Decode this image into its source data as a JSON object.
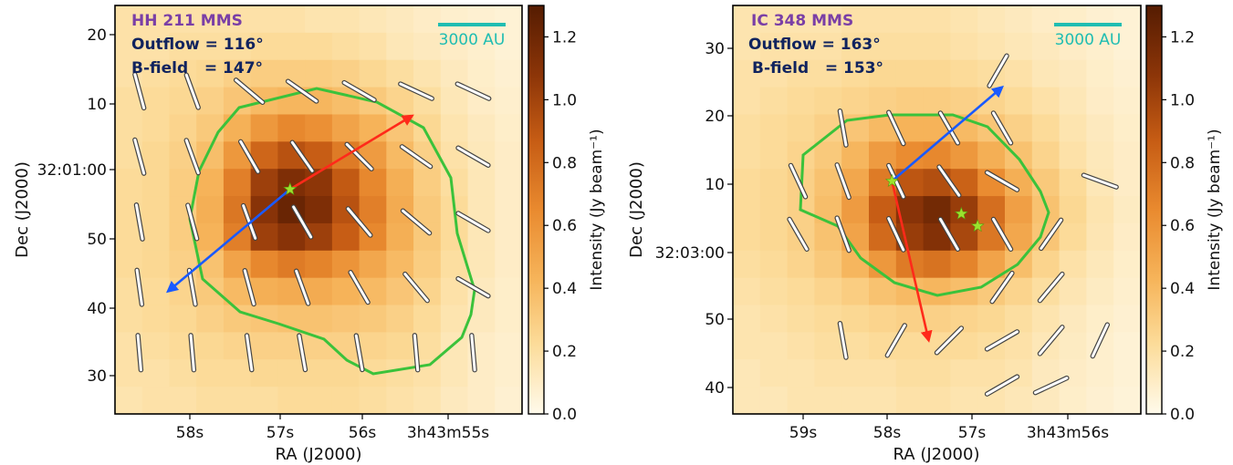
{
  "chart_data": [
    {
      "type": "heatmap",
      "title": "HH 211 MMS",
      "outflow_label": "Outflow = 116°",
      "bfield_label": "B-field   = 147°",
      "scalebar_label": "3000 AU",
      "xlabel": "RA (J2000)",
      "ylabel": "Dec (J2000)",
      "x_ticks": [
        "58s",
        "57s",
        "56s",
        "3h43m55s"
      ],
      "y_ticks": [
        "20",
        "10",
        "32:01:00",
        "50",
        "40",
        "30"
      ],
      "colorbar_label": "Intensity (Jy beam⁻¹)",
      "colorbar_ticks": [
        "1.2",
        "1.0",
        "0.8",
        "0.6",
        "0.4",
        "0.2",
        "0.0"
      ],
      "colorbar_range": [
        0,
        1.3
      ],
      "colormap": [
        "#fffaeb",
        "#fcdc9a",
        "#f6b45a",
        "#e98a2f",
        "#c65c14",
        "#8c3508",
        "#551c02"
      ],
      "grid": {
        "cols": 15,
        "rows": 15,
        "values": [
          [
            0.18,
            0.18,
            0.18,
            0.18,
            0.18,
            0.18,
            0.18,
            0.16,
            0.16,
            0.14,
            0.12,
            0.1,
            0.08,
            0.07,
            0.06
          ],
          [
            0.18,
            0.18,
            0.2,
            0.2,
            0.2,
            0.22,
            0.22,
            0.22,
            0.2,
            0.18,
            0.14,
            0.12,
            0.1,
            0.08,
            0.06
          ],
          [
            0.18,
            0.2,
            0.22,
            0.24,
            0.28,
            0.3,
            0.3,
            0.3,
            0.28,
            0.24,
            0.2,
            0.16,
            0.12,
            0.09,
            0.07
          ],
          [
            0.2,
            0.22,
            0.24,
            0.28,
            0.34,
            0.4,
            0.42,
            0.42,
            0.38,
            0.32,
            0.26,
            0.2,
            0.14,
            0.1,
            0.08
          ],
          [
            0.2,
            0.22,
            0.26,
            0.32,
            0.45,
            0.58,
            0.66,
            0.62,
            0.52,
            0.44,
            0.34,
            0.24,
            0.16,
            0.12,
            0.09
          ],
          [
            0.2,
            0.24,
            0.28,
            0.38,
            0.58,
            0.82,
            0.92,
            0.86,
            0.72,
            0.56,
            0.4,
            0.28,
            0.18,
            0.13,
            0.1
          ],
          [
            0.22,
            0.24,
            0.3,
            0.44,
            0.7,
            1.02,
            1.14,
            1.08,
            0.88,
            0.66,
            0.46,
            0.3,
            0.2,
            0.14,
            0.1
          ],
          [
            0.22,
            0.24,
            0.3,
            0.46,
            0.74,
            1.1,
            1.22,
            1.14,
            0.92,
            0.7,
            0.48,
            0.32,
            0.22,
            0.14,
            0.1
          ],
          [
            0.22,
            0.24,
            0.3,
            0.44,
            0.7,
            1.02,
            1.1,
            1.02,
            0.86,
            0.66,
            0.46,
            0.32,
            0.22,
            0.14,
            0.1
          ],
          [
            0.22,
            0.24,
            0.28,
            0.36,
            0.52,
            0.66,
            0.72,
            0.68,
            0.6,
            0.5,
            0.4,
            0.3,
            0.2,
            0.14,
            0.1
          ],
          [
            0.2,
            0.22,
            0.26,
            0.32,
            0.4,
            0.46,
            0.48,
            0.48,
            0.44,
            0.4,
            0.34,
            0.26,
            0.18,
            0.12,
            0.09
          ],
          [
            0.2,
            0.22,
            0.24,
            0.28,
            0.32,
            0.34,
            0.36,
            0.36,
            0.34,
            0.32,
            0.28,
            0.22,
            0.16,
            0.12,
            0.09
          ],
          [
            0.18,
            0.2,
            0.22,
            0.24,
            0.26,
            0.28,
            0.28,
            0.28,
            0.28,
            0.26,
            0.24,
            0.2,
            0.14,
            0.1,
            0.08
          ],
          [
            0.18,
            0.18,
            0.2,
            0.22,
            0.22,
            0.24,
            0.24,
            0.24,
            0.24,
            0.22,
            0.2,
            0.18,
            0.14,
            0.1,
            0.08
          ],
          [
            0.16,
            0.18,
            0.18,
            0.2,
            0.2,
            0.2,
            0.22,
            0.22,
            0.22,
            0.2,
            0.18,
            0.16,
            0.12,
            0.1,
            0.07
          ]
        ]
      },
      "contour_level": 0.3,
      "sources": [
        [
          0.43,
          0.45
        ]
      ],
      "outflow_red_end": [
        0.73,
        0.27
      ],
      "outflow_blue_end": [
        0.13,
        0.7
      ],
      "vectors": [
        {
          "x": 0.06,
          "y": 0.21,
          "angle": 165
        },
        {
          "x": 0.19,
          "y": 0.21,
          "angle": 160
        },
        {
          "x": 0.33,
          "y": 0.21,
          "angle": 130
        },
        {
          "x": 0.46,
          "y": 0.21,
          "angle": 125
        },
        {
          "x": 0.6,
          "y": 0.21,
          "angle": 120
        },
        {
          "x": 0.74,
          "y": 0.21,
          "angle": 115
        },
        {
          "x": 0.88,
          "y": 0.21,
          "angle": 115
        },
        {
          "x": 0.06,
          "y": 0.37,
          "angle": 165
        },
        {
          "x": 0.19,
          "y": 0.37,
          "angle": 160
        },
        {
          "x": 0.33,
          "y": 0.37,
          "angle": 150
        },
        {
          "x": 0.46,
          "y": 0.37,
          "angle": 145
        },
        {
          "x": 0.6,
          "y": 0.37,
          "angle": 135
        },
        {
          "x": 0.74,
          "y": 0.37,
          "angle": 125
        },
        {
          "x": 0.88,
          "y": 0.37,
          "angle": 120
        },
        {
          "x": 0.06,
          "y": 0.53,
          "angle": 170
        },
        {
          "x": 0.19,
          "y": 0.53,
          "angle": 165
        },
        {
          "x": 0.33,
          "y": 0.53,
          "angle": 160
        },
        {
          "x": 0.46,
          "y": 0.53,
          "angle": 150
        },
        {
          "x": 0.6,
          "y": 0.53,
          "angle": 140
        },
        {
          "x": 0.74,
          "y": 0.53,
          "angle": 130
        },
        {
          "x": 0.88,
          "y": 0.53,
          "angle": 120
        },
        {
          "x": 0.06,
          "y": 0.69,
          "angle": 172
        },
        {
          "x": 0.19,
          "y": 0.69,
          "angle": 170
        },
        {
          "x": 0.33,
          "y": 0.69,
          "angle": 165
        },
        {
          "x": 0.46,
          "y": 0.69,
          "angle": 160
        },
        {
          "x": 0.6,
          "y": 0.69,
          "angle": 150
        },
        {
          "x": 0.74,
          "y": 0.69,
          "angle": 140
        },
        {
          "x": 0.88,
          "y": 0.69,
          "angle": 120
        },
        {
          "x": 0.06,
          "y": 0.85,
          "angle": 175
        },
        {
          "x": 0.19,
          "y": 0.85,
          "angle": 175
        },
        {
          "x": 0.33,
          "y": 0.85,
          "angle": 172
        },
        {
          "x": 0.46,
          "y": 0.85,
          "angle": 170
        },
        {
          "x": 0.6,
          "y": 0.85,
          "angle": 170
        },
        {
          "x": 0.74,
          "y": 0.85,
          "angle": 175
        },
        {
          "x": 0.88,
          "y": 0.85,
          "angle": 175
        }
      ]
    },
    {
      "type": "heatmap",
      "title": "IC 348 MMS",
      "outflow_label": "Outflow = 163°",
      "bfield_label": "B-field   = 153°",
      "scalebar_label": "3000 AU",
      "xlabel": "RA (J2000)",
      "ylabel": "Dec (J2000)",
      "x_ticks": [
        "59s",
        "58s",
        "57s",
        "3h43m56s"
      ],
      "y_ticks": [
        "30",
        "20",
        "10",
        "32:03:00",
        "50",
        "40"
      ],
      "colorbar_label": "Intensity (Jy beam⁻¹)",
      "colorbar_ticks": [
        "1.2",
        "1.0",
        "0.8",
        "0.6",
        "0.4",
        "0.2",
        "0.0"
      ],
      "colorbar_range": [
        0,
        1.3
      ],
      "colormap": [
        "#fffaeb",
        "#fcdc9a",
        "#f6b45a",
        "#e98a2f",
        "#c65c14",
        "#8c3508",
        "#551c02"
      ],
      "grid": {
        "cols": 15,
        "rows": 15,
        "values": [
          [
            0.16,
            0.16,
            0.16,
            0.16,
            0.18,
            0.18,
            0.18,
            0.18,
            0.16,
            0.14,
            0.12,
            0.1,
            0.09,
            0.07,
            0.06
          ],
          [
            0.16,
            0.18,
            0.18,
            0.18,
            0.2,
            0.2,
            0.2,
            0.2,
            0.18,
            0.16,
            0.14,
            0.12,
            0.1,
            0.08,
            0.06
          ],
          [
            0.18,
            0.18,
            0.2,
            0.2,
            0.22,
            0.24,
            0.24,
            0.24,
            0.22,
            0.2,
            0.18,
            0.14,
            0.12,
            0.09,
            0.07
          ],
          [
            0.18,
            0.2,
            0.22,
            0.24,
            0.26,
            0.28,
            0.3,
            0.3,
            0.28,
            0.26,
            0.22,
            0.18,
            0.14,
            0.1,
            0.08
          ],
          [
            0.2,
            0.22,
            0.24,
            0.28,
            0.34,
            0.4,
            0.44,
            0.44,
            0.4,
            0.34,
            0.28,
            0.22,
            0.16,
            0.12,
            0.09
          ],
          [
            0.2,
            0.22,
            0.26,
            0.32,
            0.42,
            0.56,
            0.64,
            0.66,
            0.58,
            0.46,
            0.36,
            0.26,
            0.18,
            0.13,
            0.1
          ],
          [
            0.22,
            0.24,
            0.28,
            0.36,
            0.5,
            0.72,
            0.9,
            0.94,
            0.84,
            0.64,
            0.46,
            0.32,
            0.22,
            0.14,
            0.1
          ],
          [
            0.22,
            0.24,
            0.28,
            0.38,
            0.56,
            0.86,
            1.1,
            1.18,
            1.04,
            0.78,
            0.54,
            0.36,
            0.24,
            0.16,
            0.11
          ],
          [
            0.22,
            0.24,
            0.28,
            0.36,
            0.52,
            0.8,
            1.04,
            1.12,
            0.98,
            0.74,
            0.5,
            0.34,
            0.22,
            0.15,
            0.1
          ],
          [
            0.2,
            0.22,
            0.26,
            0.32,
            0.42,
            0.58,
            0.72,
            0.76,
            0.68,
            0.52,
            0.38,
            0.26,
            0.18,
            0.13,
            0.09
          ],
          [
            0.18,
            0.2,
            0.22,
            0.26,
            0.3,
            0.36,
            0.4,
            0.42,
            0.38,
            0.32,
            0.26,
            0.2,
            0.15,
            0.11,
            0.08
          ],
          [
            0.16,
            0.18,
            0.2,
            0.22,
            0.24,
            0.26,
            0.28,
            0.28,
            0.26,
            0.24,
            0.2,
            0.16,
            0.12,
            0.09,
            0.07
          ],
          [
            0.16,
            0.16,
            0.18,
            0.2,
            0.2,
            0.22,
            0.22,
            0.22,
            0.22,
            0.2,
            0.18,
            0.14,
            0.11,
            0.08,
            0.06
          ],
          [
            0.14,
            0.16,
            0.16,
            0.18,
            0.18,
            0.18,
            0.2,
            0.2,
            0.18,
            0.18,
            0.16,
            0.12,
            0.1,
            0.08,
            0.06
          ],
          [
            0.14,
            0.14,
            0.16,
            0.16,
            0.16,
            0.16,
            0.18,
            0.18,
            0.16,
            0.16,
            0.14,
            0.12,
            0.09,
            0.07,
            0.05
          ]
        ]
      },
      "contour_level": 0.3,
      "sources": [
        [
          0.39,
          0.43
        ],
        [
          0.56,
          0.51
        ],
        [
          0.6,
          0.54
        ]
      ],
      "outflow_red_end": [
        0.48,
        0.82
      ],
      "outflow_blue_end": [
        0.66,
        0.2
      ],
      "vectors": [
        {
          "x": 0.65,
          "y": 0.16,
          "angle": 30
        },
        {
          "x": 0.27,
          "y": 0.3,
          "angle": 170
        },
        {
          "x": 0.4,
          "y": 0.3,
          "angle": 155
        },
        {
          "x": 0.53,
          "y": 0.3,
          "angle": 150
        },
        {
          "x": 0.66,
          "y": 0.3,
          "angle": 150
        },
        {
          "x": 0.16,
          "y": 0.43,
          "angle": 155
        },
        {
          "x": 0.27,
          "y": 0.43,
          "angle": 160
        },
        {
          "x": 0.4,
          "y": 0.43,
          "angle": 155
        },
        {
          "x": 0.53,
          "y": 0.43,
          "angle": 145
        },
        {
          "x": 0.66,
          "y": 0.43,
          "angle": 120
        },
        {
          "x": 0.9,
          "y": 0.43,
          "angle": 110
        },
        {
          "x": 0.16,
          "y": 0.56,
          "angle": 150
        },
        {
          "x": 0.27,
          "y": 0.56,
          "angle": 160
        },
        {
          "x": 0.4,
          "y": 0.56,
          "angle": 155
        },
        {
          "x": 0.53,
          "y": 0.56,
          "angle": 150
        },
        {
          "x": 0.66,
          "y": 0.56,
          "angle": 150
        },
        {
          "x": 0.78,
          "y": 0.56,
          "angle": 35
        },
        {
          "x": 0.66,
          "y": 0.69,
          "angle": 35
        },
        {
          "x": 0.78,
          "y": 0.69,
          "angle": 40
        },
        {
          "x": 0.27,
          "y": 0.82,
          "angle": 170
        },
        {
          "x": 0.4,
          "y": 0.82,
          "angle": 30
        },
        {
          "x": 0.53,
          "y": 0.82,
          "angle": 45
        },
        {
          "x": 0.66,
          "y": 0.82,
          "angle": 60
        },
        {
          "x": 0.78,
          "y": 0.82,
          "angle": 40
        },
        {
          "x": 0.9,
          "y": 0.82,
          "angle": 25
        },
        {
          "x": 0.66,
          "y": 0.93,
          "angle": 60
        },
        {
          "x": 0.78,
          "y": 0.93,
          "angle": 65
        }
      ]
    }
  ]
}
